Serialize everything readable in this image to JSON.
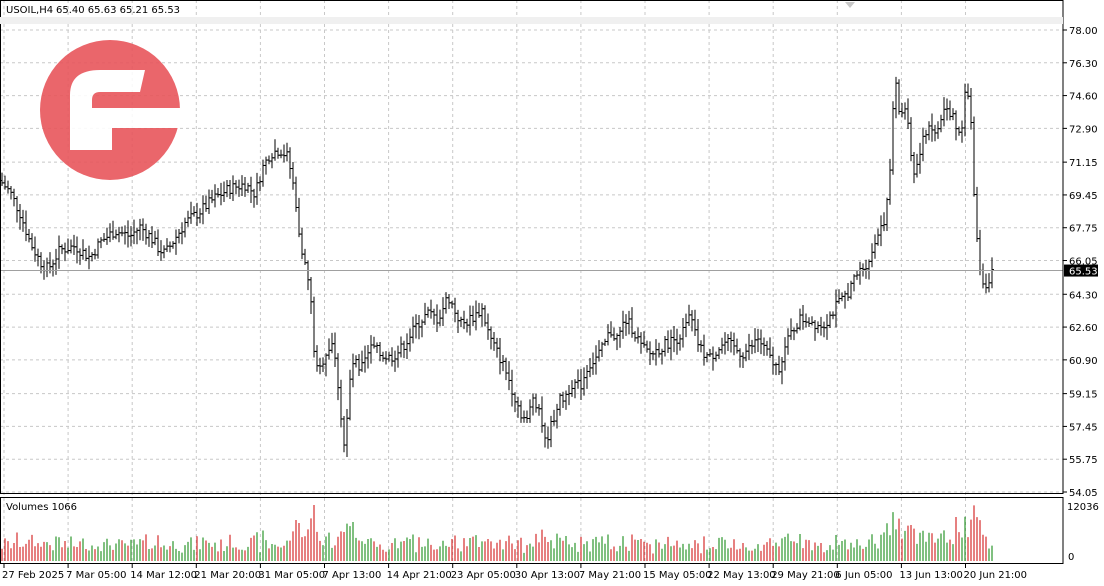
{
  "header": {
    "symbol_tf": "USOIL,H4",
    "ohlc": "65.40 65.63 65.21 65.53"
  },
  "volume_panel": {
    "label": "Volumes 1066"
  },
  "colors": {
    "bars": "#000000",
    "grid": "#c8c8c8",
    "vol_up": "#008000",
    "vol_down": "#cc0000",
    "logo": "#e8565c",
    "current_price_bg": "#000000"
  },
  "logo": {
    "icon": "brand-logo-icon"
  },
  "chart_data": [
    {
      "type": "ohlc",
      "symbol": "USOIL",
      "timeframe": "H4",
      "ylim": [
        54.05,
        78.0
      ],
      "y_ticks": [
        "78.00",
        "76.30",
        "74.60",
        "72.90",
        "71.15",
        "69.45",
        "67.75",
        "66.05",
        "64.30",
        "62.60",
        "60.90",
        "59.15",
        "57.45",
        "55.75",
        "54.05"
      ],
      "x_ticks": [
        "27 Feb 2025",
        "7 Mar 05:00",
        "14 Mar 12:00",
        "21 Mar 20:00",
        "31 Mar 05:00",
        "7 Apr 13:00",
        "14 Apr 21:00",
        "23 Apr 05:00",
        "30 Apr 13:00",
        "7 May 21:00",
        "15 May 05:00",
        "22 May 13:00",
        "29 May 21:00",
        "6 Jun 05:00",
        "13 Jun 13:00",
        "20 Jun 21:00"
      ],
      "current_price": "65.53",
      "close_path": [
        [
          0,
          70.2
        ],
        [
          10,
          69.6
        ],
        [
          20,
          68.5
        ],
        [
          30,
          67.0
        ],
        [
          40,
          66.0
        ],
        [
          48,
          65.6
        ],
        [
          60,
          66.6
        ],
        [
          75,
          66.8
        ],
        [
          90,
          66.2
        ],
        [
          100,
          67.0
        ],
        [
          115,
          67.6
        ],
        [
          130,
          67.3
        ],
        [
          140,
          67.8
        ],
        [
          150,
          67.3
        ],
        [
          158,
          66.7
        ],
        [
          165,
          66.4
        ],
        [
          175,
          67.2
        ],
        [
          185,
          68.0
        ],
        [
          200,
          68.6
        ],
        [
          215,
          69.3
        ],
        [
          230,
          69.8
        ],
        [
          245,
          70.0
        ],
        [
          255,
          69.5
        ],
        [
          262,
          70.8
        ],
        [
          270,
          71.6
        ],
        [
          280,
          71.8
        ],
        [
          288,
          71.4
        ],
        [
          293,
          70.0
        ],
        [
          300,
          67.2
        ],
        [
          305,
          65.8
        ],
        [
          310,
          64.5
        ],
        [
          314,
          61.5
        ],
        [
          318,
          60.0
        ],
        [
          322,
          60.8
        ],
        [
          326,
          61.3
        ],
        [
          332,
          61.8
        ],
        [
          337,
          60.2
        ],
        [
          341,
          58.0
        ],
        [
          345,
          56.0
        ],
        [
          349,
          59.5
        ],
        [
          354,
          61.0
        ],
        [
          359,
          60.2
        ],
        [
          365,
          60.8
        ],
        [
          372,
          61.6
        ],
        [
          380,
          61.2
        ],
        [
          390,
          61.0
        ],
        [
          400,
          61.4
        ],
        [
          408,
          62.0
        ],
        [
          418,
          62.8
        ],
        [
          428,
          63.3
        ],
        [
          438,
          63.0
        ],
        [
          448,
          64.2
        ],
        [
          455,
          63.4
        ],
        [
          462,
          62.7
        ],
        [
          472,
          63.1
        ],
        [
          482,
          63.5
        ],
        [
          490,
          62.0
        ],
        [
          500,
          61.0
        ],
        [
          508,
          60.0
        ],
        [
          516,
          58.8
        ],
        [
          522,
          58.0
        ],
        [
          527,
          57.7
        ],
        [
          533,
          59.0
        ],
        [
          540,
          58.3
        ],
        [
          545,
          56.6
        ],
        [
          552,
          57.6
        ],
        [
          558,
          58.7
        ],
        [
          565,
          59.0
        ],
        [
          572,
          59.7
        ],
        [
          580,
          59.5
        ],
        [
          588,
          60.6
        ],
        [
          596,
          61.0
        ],
        [
          603,
          61.5
        ],
        [
          610,
          62.4
        ],
        [
          618,
          62.0
        ],
        [
          625,
          63.0
        ],
        [
          633,
          62.5
        ],
        [
          642,
          61.5
        ],
        [
          650,
          61.2
        ],
        [
          660,
          61.5
        ],
        [
          668,
          61.8
        ],
        [
          676,
          62.0
        ],
        [
          684,
          62.4
        ],
        [
          690,
          63.2
        ],
        [
          696,
          62.0
        ],
        [
          702,
          61.3
        ],
        [
          710,
          61.0
        ],
        [
          718,
          61.5
        ],
        [
          726,
          61.8
        ],
        [
          734,
          61.5
        ],
        [
          742,
          61.2
        ],
        [
          750,
          61.5
        ],
        [
          758,
          62.0
        ],
        [
          765,
          61.4
        ],
        [
          772,
          60.8
        ],
        [
          778,
          60.4
        ],
        [
          785,
          61.5
        ],
        [
          792,
          62.4
        ],
        [
          800,
          63.0
        ],
        [
          808,
          63.0
        ],
        [
          815,
          62.8
        ],
        [
          822,
          62.7
        ],
        [
          828,
          63.0
        ],
        [
          835,
          63.6
        ],
        [
          842,
          64.0
        ],
        [
          850,
          64.6
        ],
        [
          858,
          65.4
        ],
        [
          865,
          65.8
        ],
        [
          872,
          66.4
        ],
        [
          878,
          67.6
        ],
        [
          884,
          68.2
        ],
        [
          888,
          69.2
        ],
        [
          891,
          71.5
        ],
        [
          893,
          74.0
        ],
        [
          896,
          75.0
        ],
        [
          900,
          73.5
        ],
        [
          905,
          74.0
        ],
        [
          909,
          72.5
        ],
        [
          913,
          70.5
        ],
        [
          917,
          71.0
        ],
        [
          921,
          71.8
        ],
        [
          926,
          72.8
        ],
        [
          930,
          73.2
        ],
        [
          935,
          72.5
        ],
        [
          940,
          73.2
        ],
        [
          945,
          74.0
        ],
        [
          950,
          73.5
        ],
        [
          954,
          73.6
        ],
        [
          958,
          72.5
        ],
        [
          962,
          73.2
        ],
        [
          965,
          75.0
        ],
        [
          968,
          74.5
        ],
        [
          972,
          72.5
        ],
        [
          975,
          68.0
        ],
        [
          978,
          66.5
        ],
        [
          982,
          65.0
        ],
        [
          986,
          64.8
        ],
        [
          990,
          65.3
        ],
        [
          994,
          65.53
        ]
      ],
      "volumes_max_label": "12036",
      "volumes_min_label": "0"
    }
  ]
}
